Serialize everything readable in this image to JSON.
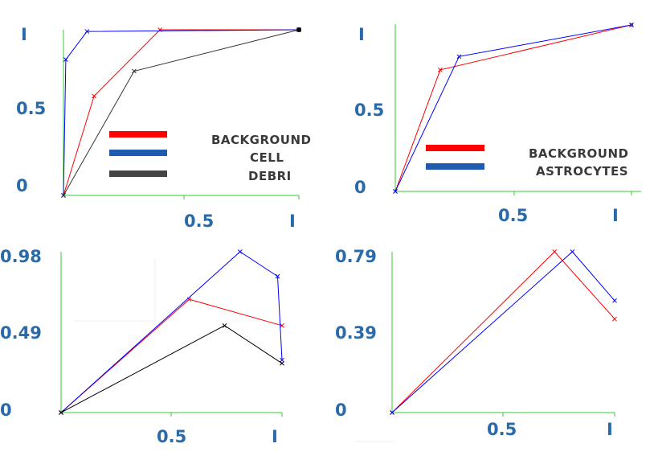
{
  "colors": {
    "tick_label": "#2a6aa8",
    "axis": "#33cc33",
    "legend_text": "#3a3a3a",
    "background_series": "#ff0000",
    "cell_series": "#0000ff",
    "debri_series": "#333333",
    "astrocytes_series": "#0000ff",
    "legend_red": "#ff0000",
    "legend_blue": "#1f5cb0",
    "legend_gray": "#444444"
  },
  "chart_data": [
    {
      "type": "line",
      "title": "",
      "xlabel": "",
      "ylabel": "",
      "xlim": [
        0,
        1
      ],
      "ylim": [
        0,
        1
      ],
      "x_ticks": [
        "0.5",
        "I"
      ],
      "y_ticks": [
        "0",
        "0.5",
        "I"
      ],
      "grid": false,
      "legend_position": "center-right",
      "legend": [
        {
          "label": "BACKGROUND",
          "color": "#ff0000"
        },
        {
          "label": "CELL",
          "color": "#1f5cb0"
        },
        {
          "label": "DEBRI",
          "color": "#444444"
        }
      ],
      "series": [
        {
          "color": "#ff0000",
          "x": [
            0,
            0.13,
            0.41,
            1.0
          ],
          "y": [
            0,
            0.6,
            1.0,
            1.0
          ]
        },
        {
          "color": "#0000ff",
          "x": [
            0,
            0.01,
            0.1,
            1.0
          ],
          "y": [
            0,
            0.82,
            0.99,
            1.0
          ]
        },
        {
          "color": "#333333",
          "x": [
            0,
            0.3,
            1.0
          ],
          "y": [
            0,
            0.75,
            1.0
          ]
        }
      ]
    },
    {
      "type": "line",
      "title": "",
      "xlabel": "",
      "ylabel": "",
      "xlim": [
        0,
        1
      ],
      "ylim": [
        0,
        1
      ],
      "x_ticks": [
        "0.5",
        "I"
      ],
      "y_ticks": [
        "0",
        "0.5",
        "I"
      ],
      "grid": false,
      "legend_position": "center-right",
      "legend": [
        {
          "label": "BACKGROUND",
          "color": "#ff0000"
        },
        {
          "label": "ASTROCYTES",
          "color": "#1f5cb0"
        }
      ],
      "series": [
        {
          "color": "#ff0000",
          "x": [
            0,
            0.19,
            1.0
          ],
          "y": [
            0,
            0.73,
            1.0
          ]
        },
        {
          "color": "#0000ff",
          "x": [
            0,
            0.27,
            1.0
          ],
          "y": [
            0,
            0.81,
            1.0
          ]
        }
      ]
    },
    {
      "type": "line",
      "title": "",
      "xlabel": "",
      "ylabel": "",
      "xlim": [
        0,
        1
      ],
      "ylim": [
        0,
        0.98
      ],
      "x_ticks": [
        "0.5",
        "I"
      ],
      "y_ticks": [
        "0",
        "0.49",
        "0.98"
      ],
      "grid": false,
      "series": [
        {
          "color": "#ff0000",
          "x": [
            0,
            0.58,
            1.0
          ],
          "y": [
            0,
            0.69,
            0.53
          ]
        },
        {
          "color": "#0000ff",
          "x": [
            0,
            0.81,
            0.98,
            1.0
          ],
          "y": [
            0,
            0.98,
            0.83,
            0.32
          ]
        },
        {
          "color": "#000000",
          "x": [
            0,
            0.74,
            1.0
          ],
          "y": [
            0,
            0.53,
            0.3
          ]
        }
      ]
    },
    {
      "type": "line",
      "title": "",
      "xlabel": "",
      "ylabel": "",
      "xlim": [
        0,
        1
      ],
      "ylim": [
        0,
        0.79
      ],
      "x_ticks": [
        "0.5",
        "I"
      ],
      "y_ticks": [
        "0",
        "0.39",
        "0.79"
      ],
      "grid": false,
      "series": [
        {
          "color": "#ff0000",
          "x": [
            0,
            0.73,
            1.0
          ],
          "y": [
            0,
            0.79,
            0.46
          ]
        },
        {
          "color": "#0000ff",
          "x": [
            0,
            0.81,
            1.0
          ],
          "y": [
            0,
            0.79,
            0.55
          ]
        }
      ]
    }
  ]
}
